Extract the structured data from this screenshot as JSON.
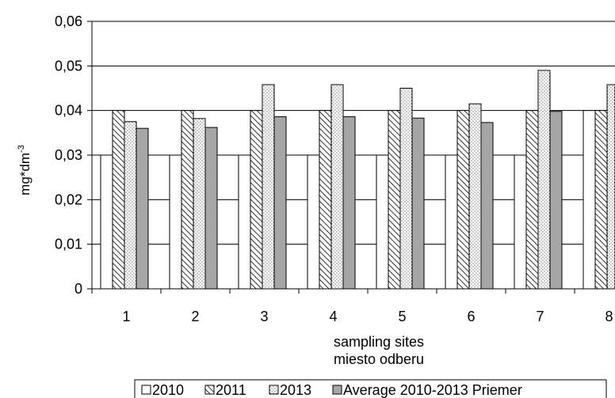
{
  "chart_data": {
    "type": "bar",
    "title": "",
    "xlabel_line1": "sampling sites",
    "xlabel_line2": "miesto odberu",
    "ylabel": "mg*dm",
    "ylabel_sup": "-3",
    "ylim": [
      0,
      0.06
    ],
    "yticks": [
      0,
      0.01,
      0.02,
      0.03,
      0.04,
      0.05,
      0.06
    ],
    "ytick_labels": [
      "0",
      "0,01",
      "0,02",
      "0,03",
      "0,04",
      "0,05",
      "0,06"
    ],
    "categories": [
      "1",
      "2",
      "3",
      "4",
      "5",
      "6",
      "7",
      "8"
    ],
    "grid": "horizontal",
    "legend_position": "bottom",
    "series": [
      {
        "name": "2010",
        "fill": "white",
        "values": [
          0.03,
          0.03,
          0.03,
          0.03,
          0.03,
          0.03,
          0.03,
          0.04
        ]
      },
      {
        "name": "2011",
        "fill": "diagonal-hatch",
        "values": [
          0.04,
          0.04,
          0.04,
          0.04,
          0.04,
          0.04,
          0.04,
          0.04
        ]
      },
      {
        "name": "2013",
        "fill": "dotted",
        "values": [
          0.0375,
          0.0382,
          0.0458,
          0.0458,
          0.045,
          0.0415,
          0.049,
          0.0458
        ]
      },
      {
        "name": "Average 2010-2013 Priemer",
        "fill": "gray",
        "values": [
          0.036,
          0.0362,
          0.0386,
          0.0386,
          0.0383,
          0.0373,
          0.0398,
          null
        ]
      }
    ],
    "colors": {
      "gray_fill": "#a6a6a6",
      "outline": "#000000",
      "background": "#ffffff"
    }
  }
}
